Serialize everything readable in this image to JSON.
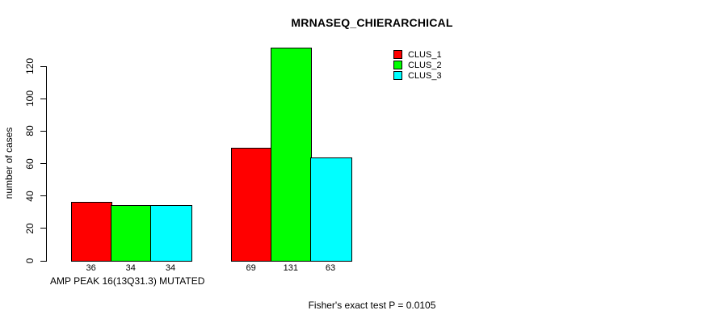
{
  "chart_data": {
    "type": "bar",
    "title": "MRNASEQ_CHIERARCHICAL",
    "ylabel": "number of cases",
    "xlabel": "AMP PEAK 16(13Q31.3) MUTATED",
    "categories": [
      "AMP PEAK 16(13Q31.3) MUTATED",
      ""
    ],
    "series": [
      {
        "name": "CLUS_1",
        "color": "#FF0000",
        "values": [
          36,
          69
        ]
      },
      {
        "name": "CLUS_2",
        "color": "#00FF00",
        "values": [
          34,
          131
        ]
      },
      {
        "name": "CLUS_3",
        "color": "#00FFFF",
        "values": [
          34,
          63
        ]
      }
    ],
    "bar_value_labels": [
      [
        36,
        34,
        34
      ],
      [
        69,
        131,
        63
      ]
    ],
    "yticks": [
      0,
      20,
      40,
      60,
      80,
      100,
      120
    ],
    "ylim": [
      0,
      131
    ],
    "grid": "off",
    "legend_position": "top-right",
    "annotation": "Fisher's exact test P = 0.0105",
    "axis_color": "#000000",
    "background_color": "#FFFFFF"
  }
}
